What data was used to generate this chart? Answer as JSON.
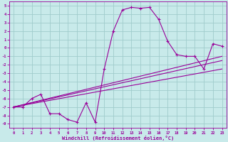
{
  "xlabel": "Windchill (Refroidissement éolien,°C)",
  "bg_color": "#c8eaea",
  "grid_color": "#a0cccc",
  "line_color": "#990099",
  "xlim": [
    -0.5,
    23.5
  ],
  "ylim": [
    -9.5,
    5.5
  ],
  "xticks": [
    0,
    1,
    2,
    3,
    4,
    5,
    6,
    7,
    8,
    9,
    10,
    11,
    12,
    13,
    14,
    15,
    16,
    17,
    18,
    19,
    20,
    21,
    22,
    23
  ],
  "yticks": [
    5,
    4,
    3,
    2,
    1,
    0,
    -1,
    -2,
    -3,
    -4,
    -5,
    -6,
    -7,
    -8,
    -9
  ],
  "series1_x": [
    0,
    1,
    2,
    3,
    4,
    5,
    6,
    7,
    8,
    9,
    10,
    11,
    12,
    13,
    14,
    15,
    16,
    17,
    18,
    19,
    20,
    21,
    22,
    23
  ],
  "series1_y": [
    -7.0,
    -7.0,
    -6.0,
    -5.5,
    -7.8,
    -7.8,
    -8.5,
    -8.8,
    -6.5,
    -8.8,
    -2.5,
    2.0,
    4.5,
    4.8,
    4.7,
    4.8,
    3.4,
    0.8,
    -0.8,
    -1.0,
    -1.0,
    -2.5,
    0.5,
    0.2
  ],
  "line1_x": [
    0,
    23
  ],
  "line1_y": [
    -7.0,
    -2.5
  ],
  "line2_x": [
    0,
    23
  ],
  "line2_y": [
    -7.0,
    -1.5
  ],
  "line3_x": [
    0,
    23
  ],
  "line3_y": [
    -7.0,
    -1.0
  ]
}
